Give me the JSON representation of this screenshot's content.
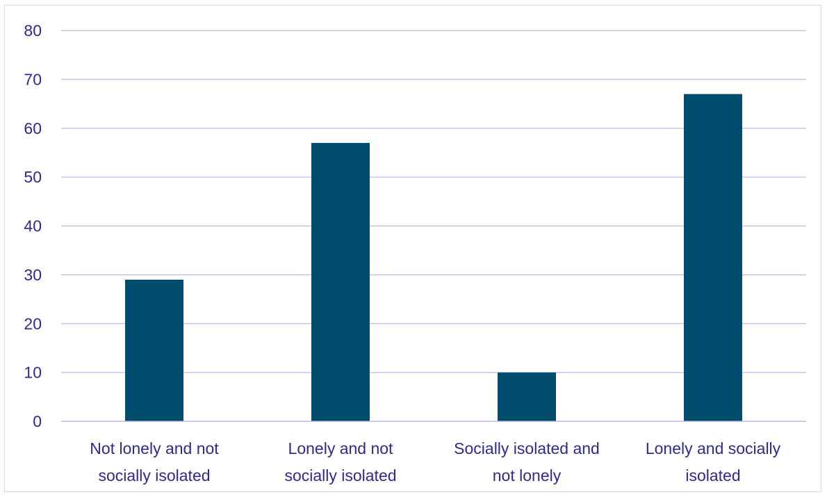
{
  "chart_data": {
    "type": "bar",
    "categories": [
      [
        "Not lonely and not",
        "socially isolated"
      ],
      [
        "Lonely and not",
        "socially isolated"
      ],
      [
        "Socially isolated and",
        "not lonely"
      ],
      [
        "Lonely and socially",
        "isolated"
      ]
    ],
    "values": [
      29,
      57,
      10,
      67
    ],
    "ylim": [
      0,
      80
    ],
    "yticks": [
      0,
      10,
      20,
      30,
      40,
      50,
      60,
      70,
      80
    ],
    "grid": true,
    "legend": "none",
    "colors": {
      "bar": "#004c6d",
      "text": "#2f2a8f",
      "grid": "#c7c4e6"
    }
  }
}
